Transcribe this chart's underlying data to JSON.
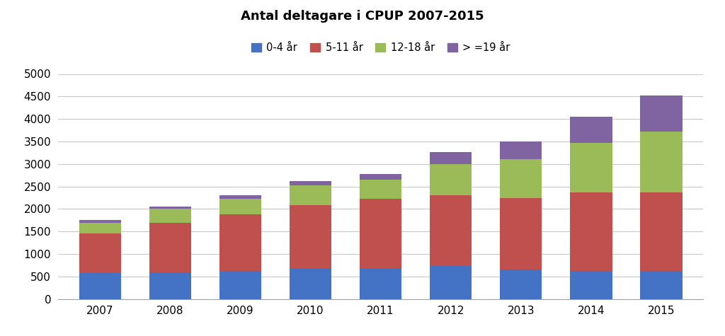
{
  "title": "Antal deltagare i CPUP 2007-2015",
  "years": [
    "2007",
    "2008",
    "2009",
    "2010",
    "2011",
    "2012",
    "2013",
    "2014",
    "2015"
  ],
  "series": {
    "0-4 år": [
      580,
      600,
      630,
      690,
      680,
      730,
      650,
      620,
      620
    ],
    "5-11 år": [
      870,
      1100,
      1250,
      1400,
      1540,
      1580,
      1600,
      1750,
      1750
    ],
    "12-18 år": [
      240,
      300,
      350,
      430,
      430,
      680,
      850,
      1100,
      1350
    ],
    "> =19 år": [
      60,
      50,
      70,
      100,
      130,
      280,
      400,
      580,
      800
    ]
  },
  "colors": {
    "0-4 år": "#4472C4",
    "5-11 år": "#C0504D",
    "12-18 år": "#9BBB59",
    "> =19 år": "#8064A2"
  },
  "ylim": [
    0,
    5000
  ],
  "yticks": [
    0,
    500,
    1000,
    1500,
    2000,
    2500,
    3000,
    3500,
    4000,
    4500,
    5000
  ],
  "background_color": "#FFFFFF",
  "grid_color": "#C8C8C8",
  "bar_width": 0.6
}
